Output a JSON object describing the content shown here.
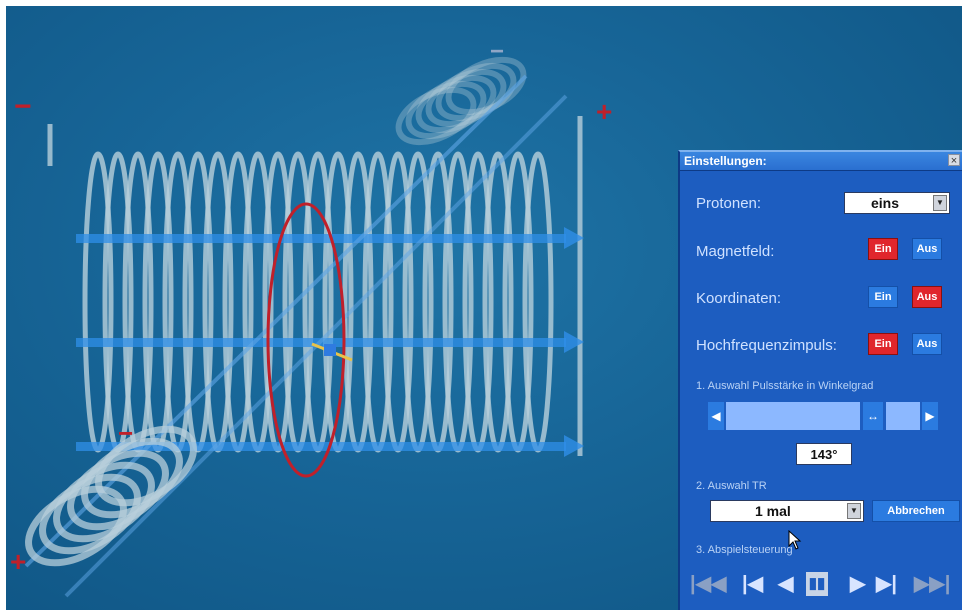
{
  "panel": {
    "title": "Einstellungen:",
    "close_label": "×",
    "protons": {
      "label": "Protonen:",
      "selected": "eins"
    },
    "magnetfield": {
      "label": "Magnetfeld:",
      "on": "Ein",
      "off": "Aus",
      "active": "on"
    },
    "coordinates": {
      "label": "Koordinaten:",
      "on": "Ein",
      "off": "Aus",
      "active": "off"
    },
    "rf_pulse": {
      "label": "Hochfrequenzimpuls:",
      "on": "Ein",
      "off": "Aus",
      "active": "on"
    },
    "pulse_strength": {
      "label": "1. Auswahl Pulsstärke in Winkelgrad",
      "value": "143°",
      "degrees": 143
    },
    "tr": {
      "label": "2. Auswahl TR",
      "selected": "1 mal",
      "cancel_label": "Abbrechen"
    },
    "playback": {
      "label": "3. Abspielsteuerung",
      "buttons": [
        "first-icon",
        "prev-frame-icon",
        "reverse-play-icon",
        "pause-icon",
        "play-icon",
        "next-frame-icon",
        "last-icon"
      ]
    }
  },
  "scene": {
    "signs": {
      "minus": "−",
      "plus": "+"
    }
  },
  "colors": {
    "background": "#176597",
    "panel": "#1d5dc0",
    "active_toggle": "#e0262c",
    "inactive_toggle": "#2b7be0",
    "coil": "#b8cfdb",
    "field_arrow": "#2f8fe8",
    "precession_ring": "#c0202a"
  }
}
